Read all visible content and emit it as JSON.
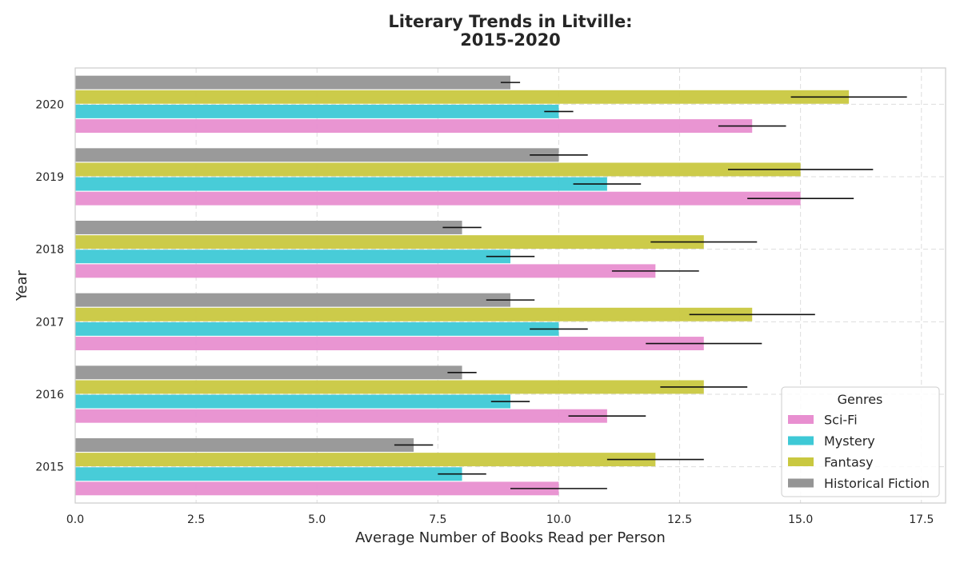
{
  "chart_data": {
    "type": "bar",
    "orientation": "horizontal",
    "title_line1": "Literary Trends in Litville:",
    "title_line2": "2015-2020",
    "xlabel": "Average Number of Books Read per Person",
    "ylabel": "Year",
    "xlim": [
      0,
      18
    ],
    "x_ticks": [
      "0.0",
      "2.5",
      "5.0",
      "7.5",
      "10.0",
      "12.5",
      "15.0",
      "17.5"
    ],
    "x_tick_values": [
      0,
      2.5,
      5,
      7.5,
      10,
      12.5,
      15,
      17.5
    ],
    "categories": [
      "2015",
      "2016",
      "2017",
      "2018",
      "2019",
      "2020"
    ],
    "grid": true,
    "legend_title": "Genres",
    "legend_position": "lower-right",
    "series": [
      {
        "name": "Sci-Fi",
        "color": "#e88fd0",
        "values": [
          10,
          11,
          13,
          12,
          15,
          14
        ],
        "errors": [
          1.0,
          0.8,
          1.2,
          0.9,
          1.1,
          0.7
        ]
      },
      {
        "name": "Mystery",
        "color": "#3ec9d6",
        "values": [
          8,
          9,
          10,
          9,
          11,
          10
        ],
        "errors": [
          0.5,
          0.4,
          0.6,
          0.5,
          0.7,
          0.3
        ]
      },
      {
        "name": "Fantasy",
        "color": "#c9c840",
        "values": [
          12,
          13,
          14,
          13,
          15,
          16
        ],
        "errors": [
          1.0,
          0.9,
          1.3,
          1.1,
          1.5,
          1.2
        ]
      },
      {
        "name": "Historical Fiction",
        "color": "#959595",
        "values": [
          7,
          8,
          9,
          8,
          10,
          9
        ],
        "errors": [
          0.4,
          0.3,
          0.5,
          0.4,
          0.6,
          0.2
        ]
      }
    ]
  }
}
